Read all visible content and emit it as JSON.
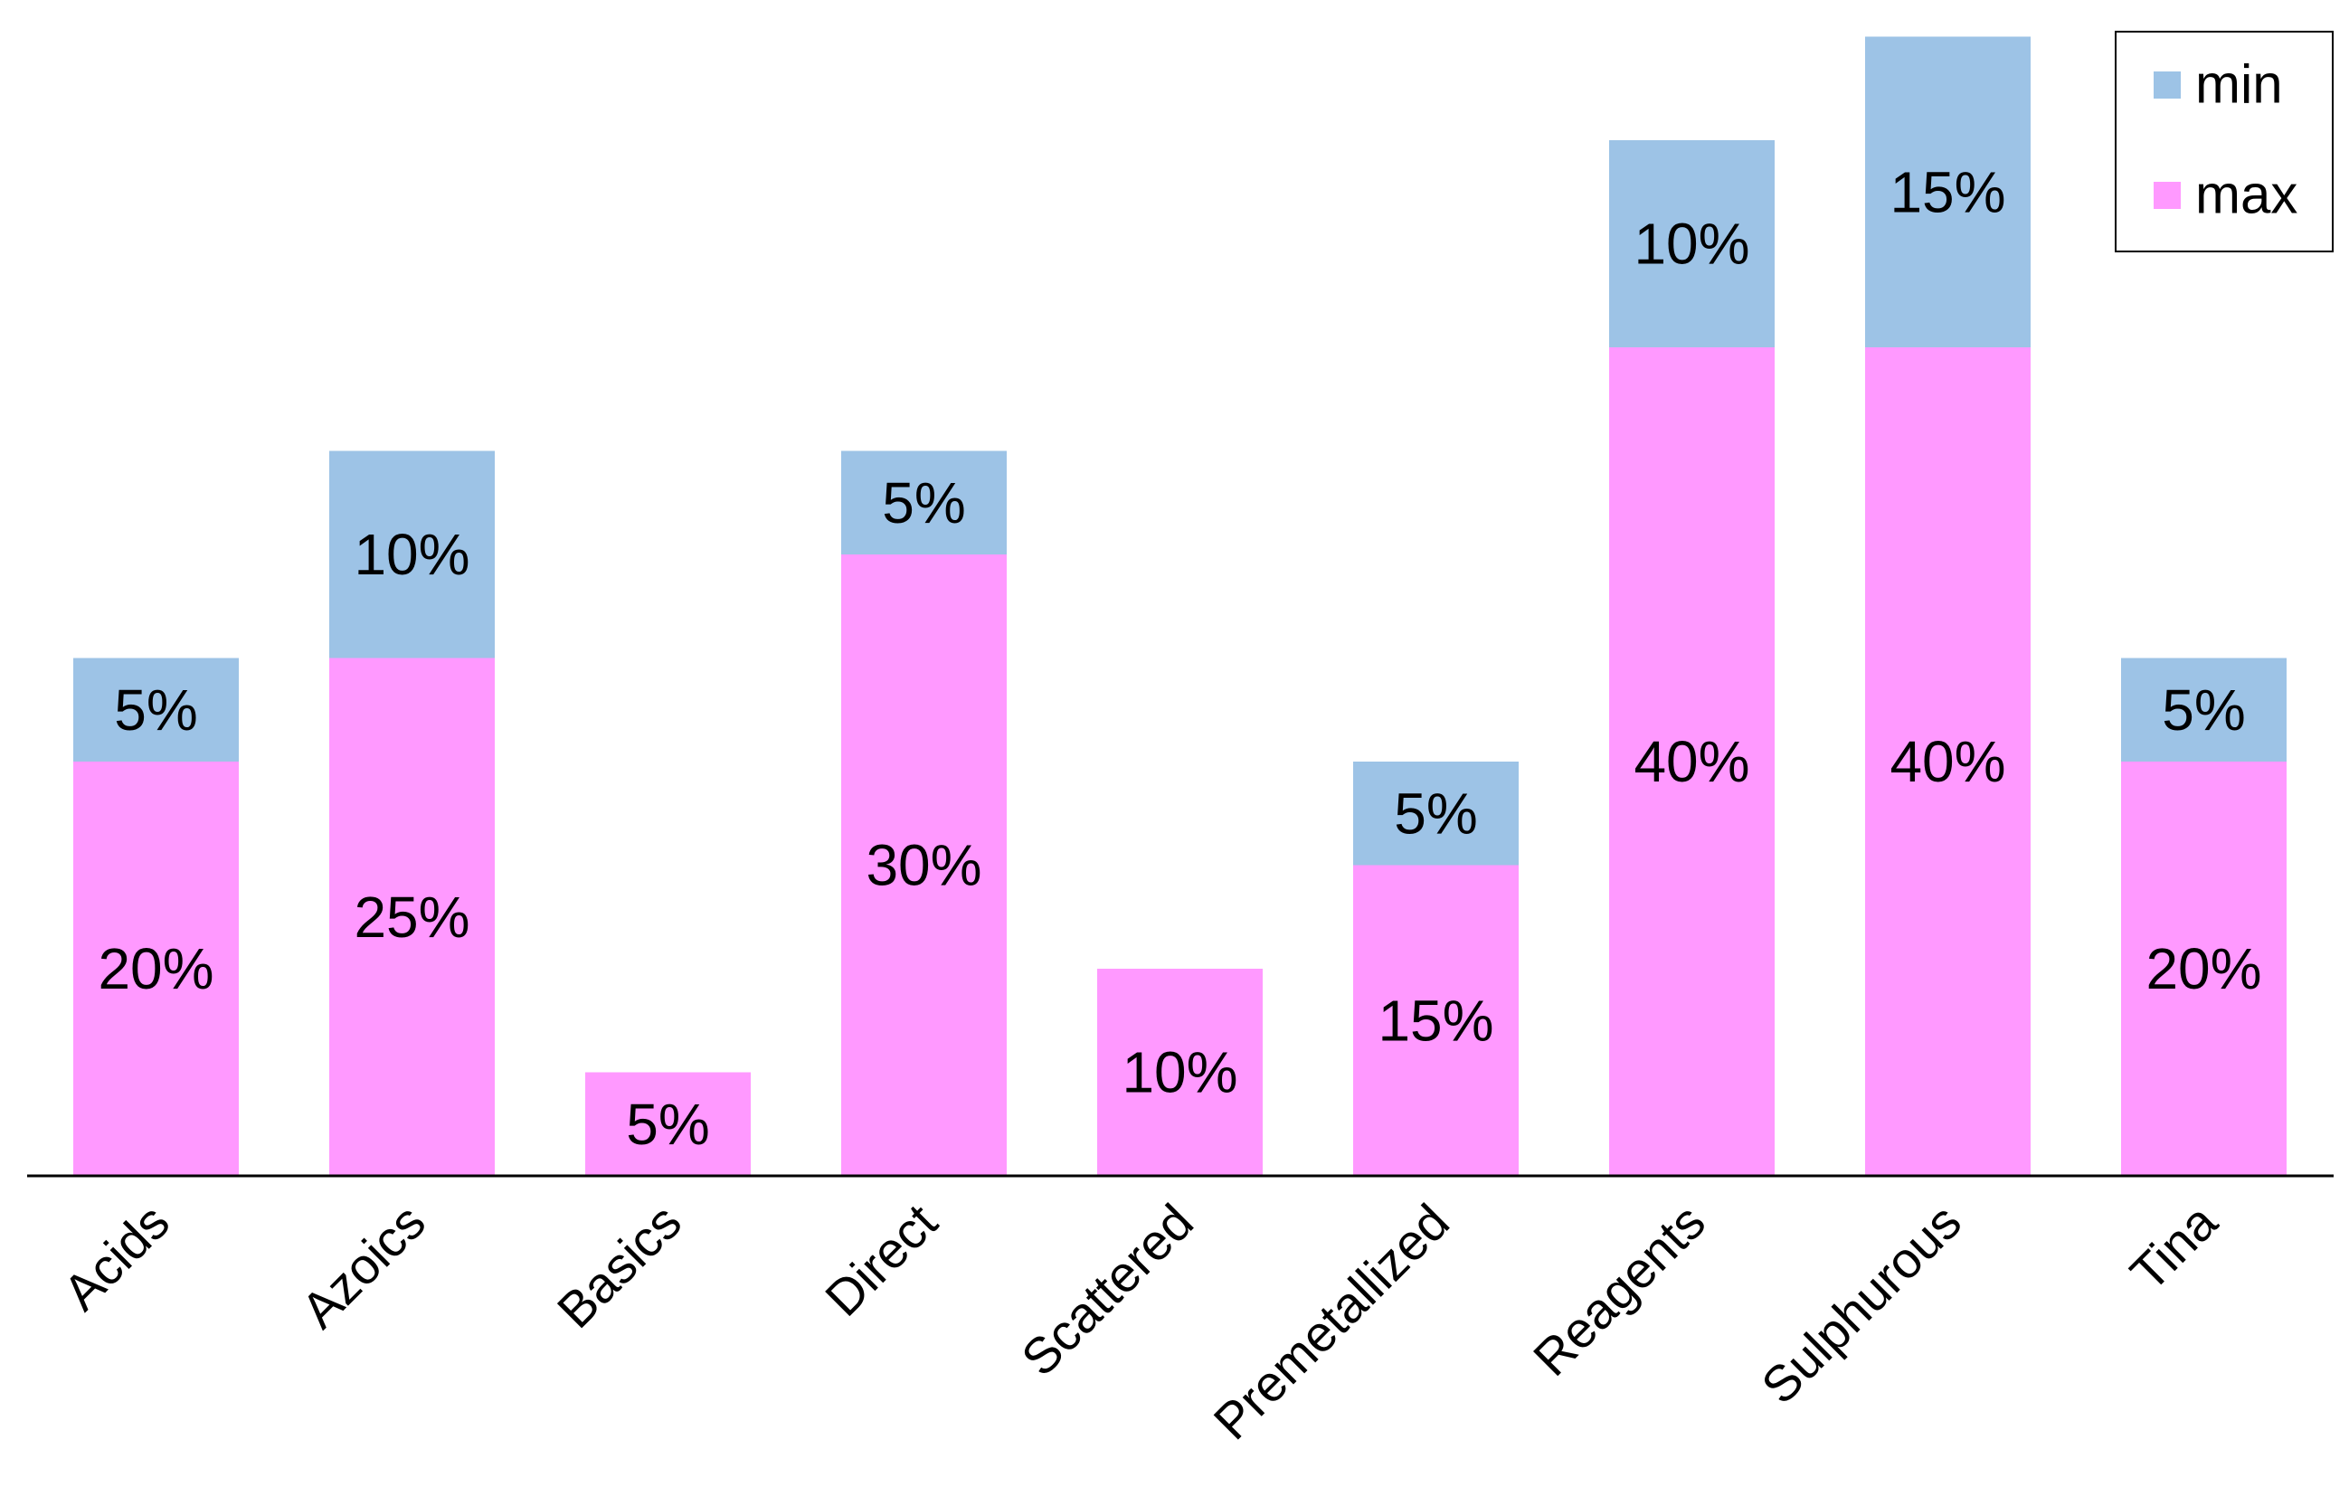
{
  "chart_data": {
    "type": "bar",
    "stacked": true,
    "categories": [
      "Acids",
      "Azoics",
      "Basics",
      "Direct",
      "Scattered",
      "Premetallized",
      "Reagents",
      "Sulphurous",
      "Tina"
    ],
    "series": [
      {
        "name": "max",
        "color": "#ff99ff",
        "values": [
          20,
          25,
          5,
          30,
          10,
          15,
          40,
          40,
          20
        ],
        "labels": [
          "20%",
          "25%",
          "5%",
          "30%",
          "10%",
          "15%",
          "40%",
          "40%",
          "20%"
        ]
      },
      {
        "name": "min",
        "color": "#9dc3e6",
        "values": [
          5,
          10,
          0,
          5,
          0,
          5,
          10,
          15,
          5
        ],
        "labels": [
          "5%",
          "10%",
          "",
          "5%",
          "",
          "5%",
          "10%",
          "15%",
          "5%"
        ]
      }
    ],
    "ylim": [
      0,
      55
    ],
    "grid": false,
    "legend_position": "top-right",
    "legend_order": [
      "min",
      "max"
    ]
  }
}
